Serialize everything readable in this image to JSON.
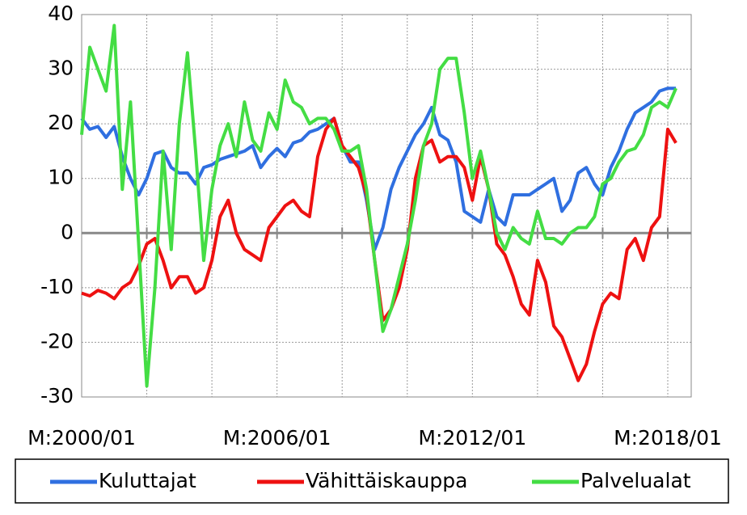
{
  "chart_data": {
    "type": "line",
    "categories": [
      "M:2000/01",
      null,
      null,
      null,
      null,
      null,
      null,
      null,
      null,
      null,
      null,
      null,
      null,
      null,
      null,
      null,
      null,
      null,
      null,
      null,
      null,
      null,
      null,
      null,
      "M:2006/01",
      null,
      null,
      null,
      null,
      null,
      null,
      null,
      null,
      null,
      null,
      null,
      null,
      null,
      null,
      null,
      null,
      null,
      null,
      null,
      null,
      null,
      null,
      null,
      "M:2012/01",
      null,
      null,
      null,
      null,
      null,
      null,
      null,
      null,
      null,
      null,
      null,
      null,
      null,
      null,
      null,
      null,
      null,
      null,
      null,
      null,
      null,
      null,
      null,
      "M:2018/01",
      null,
      null
    ],
    "series": [
      {
        "name": "Kuluttajat",
        "color": "#2f6fe0",
        "values": [
          21,
          19,
          19.5,
          17.5,
          19.5,
          14,
          10,
          7,
          10,
          14.5,
          15,
          12,
          11,
          11,
          9,
          12,
          12.5,
          13.5,
          14,
          14.5,
          15,
          16,
          12,
          14,
          15.5,
          14,
          16.5,
          17,
          18.5,
          19,
          20,
          21,
          16,
          13,
          13,
          6,
          -3,
          1,
          8,
          12,
          15,
          18,
          20,
          23,
          18,
          17,
          13,
          4,
          3,
          2,
          8,
          3,
          1.5,
          7,
          7,
          7,
          8,
          9,
          10,
          4,
          6,
          11,
          12,
          9,
          7,
          12,
          15,
          19,
          22,
          23,
          24,
          26,
          26.5,
          26.5,
          null
        ]
      },
      {
        "name": "Vähittäiskauppa",
        "color": "#ee1111",
        "values": [
          -11,
          -11.5,
          -10.5,
          -11,
          -12,
          -10,
          -9,
          -6,
          -2,
          -1,
          -5,
          -10,
          -8,
          -8,
          -11,
          -10,
          -5,
          3,
          6,
          0,
          -3,
          -4,
          -5,
          1,
          3,
          5,
          6,
          4,
          3,
          14,
          19,
          21,
          16,
          14,
          12,
          7,
          -5,
          -16,
          -14,
          -10,
          -3,
          10,
          16,
          17,
          13,
          14,
          14,
          12,
          6,
          14,
          8,
          -2,
          -4,
          -8,
          -13,
          -15,
          -5,
          -9,
          -17,
          -19,
          -23,
          -27,
          -24,
          -18,
          -13,
          -11,
          -12,
          -3,
          -1,
          -5,
          1,
          3,
          19,
          16.5,
          null
        ]
      },
      {
        "name": "Palvelualat",
        "color": "#44dd44",
        "values": [
          18,
          34,
          30,
          26,
          38,
          8,
          24,
          -2,
          -28,
          -10,
          15,
          -3,
          20,
          33,
          15,
          -5,
          8,
          16,
          20,
          14,
          24,
          17,
          15,
          22,
          19,
          28,
          24,
          23,
          20,
          21,
          21,
          19,
          15,
          15,
          16,
          8,
          -5,
          -18,
          -14,
          -8,
          -2,
          6,
          16,
          20,
          30,
          32,
          32,
          22,
          10,
          15,
          8,
          0,
          -3,
          1,
          -1,
          -2,
          4,
          -1,
          -1,
          -2,
          0,
          1,
          1,
          3,
          9,
          10,
          13,
          15,
          15.5,
          18,
          23,
          24,
          23,
          26.5,
          null
        ]
      }
    ],
    "ylim": [
      -30,
      40
    ],
    "yticks": [
      -30,
      -20,
      -10,
      0,
      10,
      20,
      30,
      40
    ],
    "grid": true
  }
}
